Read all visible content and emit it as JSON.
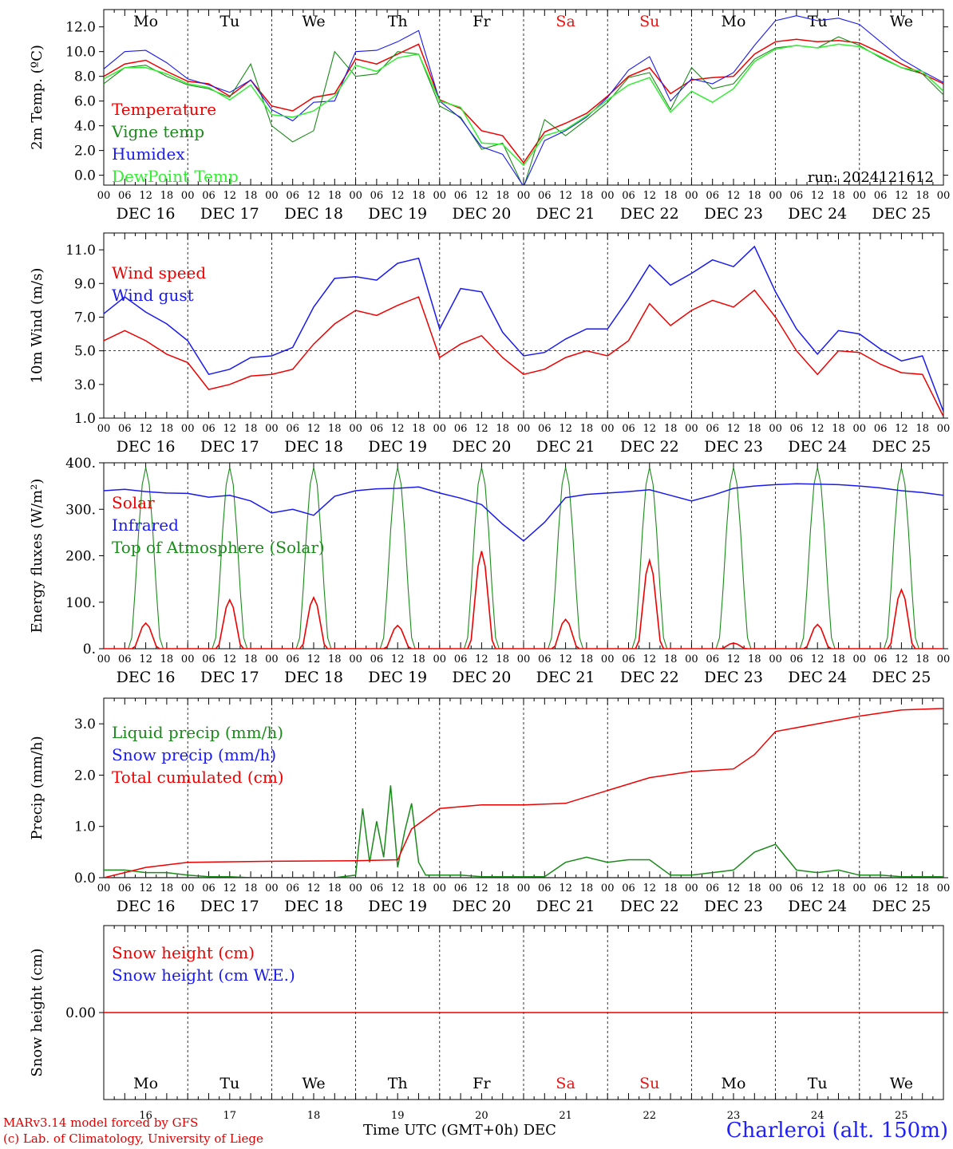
{
  "colors": {
    "red": "#ee0000",
    "dark_green": "#1a8a1a",
    "blue": "#1a1aee",
    "light_green": "#33ee33",
    "weekend": "#ee1111",
    "axis": "#000000"
  },
  "days": {
    "weekday_labels": [
      "Mo",
      "Tu",
      "We",
      "Th",
      "Fr",
      "Sa",
      "Su",
      "Mo",
      "Tu",
      "We"
    ],
    "weekend_flags": [
      false,
      false,
      false,
      false,
      false,
      true,
      true,
      false,
      false,
      false
    ],
    "date_labels": [
      "DEC 16",
      "DEC 17",
      "DEC 18",
      "DEC 19",
      "DEC 20",
      "DEC 21",
      "DEC 22",
      "DEC 23",
      "DEC 24",
      "DEC 25"
    ],
    "day_numbers": [
      "16",
      "17",
      "18",
      "19",
      "20",
      "21",
      "22",
      "23",
      "24",
      "25"
    ],
    "hour_ticks": [
      "00",
      "06",
      "12",
      "18"
    ],
    "final_tick": "00"
  },
  "footer": {
    "credit_line1": "MARv3.14 model forced by GFS",
    "credit_line2": "(c) Lab. of Climatology, University of Liege",
    "axis_title": "Time UTC (GMT+0h) DEC",
    "station": "Charleroi (alt. 150m)"
  },
  "chart_data": [
    {
      "type": "line",
      "panel": "temperature",
      "ylabel": "2m Temp. (ºC)",
      "ylim": [
        -0.8,
        13.4
      ],
      "yticks": [
        0.0,
        2.0,
        4.0,
        6.0,
        8.0,
        10.0,
        12.0
      ],
      "ytick_labels": [
        "0.0",
        "2.0",
        "4.0",
        "6.0",
        "8.0",
        "10.0",
        "12.0"
      ],
      "run_label": "run: 2024121612",
      "x_unit": "hours since Dec 16 00 UTC",
      "series": [
        {
          "name": "Temperature",
          "color": "#ee0000",
          "x": [
            0,
            6,
            12,
            18,
            24,
            30,
            36,
            42,
            48,
            54,
            60,
            66,
            72,
            78,
            84,
            90,
            96,
            102,
            108,
            114,
            120,
            126,
            132,
            138,
            144,
            150,
            156,
            162,
            168,
            174,
            180,
            186,
            192,
            198,
            204,
            210,
            216,
            222,
            228,
            234,
            240
          ],
          "y": [
            8.0,
            9.0,
            9.3,
            8.4,
            7.6,
            7.4,
            6.4,
            7.7,
            5.6,
            5.2,
            6.3,
            6.6,
            9.4,
            9.0,
            9.8,
            10.6,
            6.1,
            5.4,
            3.6,
            3.2,
            1.0,
            3.5,
            4.2,
            5.0,
            6.4,
            8.0,
            8.7,
            6.6,
            7.7,
            7.9,
            8.0,
            9.8,
            10.8,
            11.0,
            10.8,
            10.9,
            10.7,
            9.9,
            9.0,
            8.2,
            7.4
          ]
        },
        {
          "name": "Vigne temp",
          "color": "#1a8a1a",
          "x": [
            0,
            6,
            12,
            18,
            24,
            30,
            36,
            42,
            48,
            54,
            60,
            66,
            72,
            78,
            84,
            90,
            96,
            102,
            108,
            114,
            120,
            126,
            132,
            138,
            144,
            150,
            156,
            162,
            168,
            174,
            180,
            186,
            192,
            198,
            204,
            210,
            216,
            222,
            228,
            234,
            240
          ],
          "y": [
            7.4,
            8.7,
            8.9,
            8.0,
            7.3,
            7.0,
            6.3,
            9.0,
            4.0,
            2.7,
            3.6,
            10.0,
            8.0,
            8.2,
            10.0,
            9.8,
            5.6,
            4.7,
            2.1,
            2.6,
            -1.0,
            4.5,
            3.2,
            4.5,
            5.9,
            7.9,
            8.3,
            5.3,
            8.7,
            7.0,
            7.4,
            9.4,
            10.3,
            10.5,
            10.3,
            11.2,
            10.5,
            9.5,
            8.7,
            8.2,
            6.5
          ]
        },
        {
          "name": "Humidex",
          "color": "#1a1aee",
          "x": [
            0,
            6,
            12,
            18,
            24,
            30,
            36,
            42,
            48,
            54,
            60,
            66,
            72,
            78,
            84,
            90,
            96,
            102,
            108,
            114,
            120,
            126,
            132,
            138,
            144,
            150,
            156,
            162,
            168,
            174,
            180,
            186,
            192,
            198,
            204,
            210,
            216,
            222,
            228,
            234,
            240
          ],
          "y": [
            8.6,
            10.0,
            10.1,
            9.1,
            7.8,
            7.3,
            6.7,
            7.7,
            5.3,
            4.4,
            5.9,
            6.0,
            10.0,
            10.1,
            10.8,
            11.7,
            6.0,
            4.6,
            2.3,
            1.7,
            -0.9,
            2.8,
            3.6,
            4.7,
            6.3,
            8.5,
            9.6,
            6.0,
            7.8,
            7.4,
            8.3,
            10.5,
            12.5,
            12.9,
            12.5,
            12.7,
            12.2,
            10.8,
            9.4,
            8.4,
            7.5
          ]
        },
        {
          "name": "DewPoint Temp",
          "color": "#33ee33",
          "x": [
            0,
            6,
            12,
            18,
            24,
            30,
            36,
            42,
            48,
            54,
            60,
            66,
            72,
            78,
            84,
            90,
            96,
            102,
            108,
            114,
            120,
            126,
            132,
            138,
            144,
            150,
            156,
            162,
            168,
            174,
            180,
            186,
            192,
            198,
            204,
            210,
            216,
            222,
            228,
            234,
            240
          ],
          "y": [
            7.8,
            8.7,
            8.7,
            8.2,
            7.4,
            7.1,
            6.1,
            7.3,
            4.9,
            4.7,
            5.2,
            6.4,
            8.9,
            8.4,
            9.5,
            9.8,
            6.0,
            5.5,
            2.6,
            2.5,
            0.8,
            3.2,
            3.7,
            4.8,
            6.1,
            7.3,
            7.9,
            5.1,
            6.8,
            5.9,
            7.0,
            9.2,
            10.2,
            10.5,
            10.3,
            10.6,
            10.4,
            9.6,
            8.7,
            8.4,
            6.8
          ]
        }
      ]
    },
    {
      "type": "line",
      "panel": "wind",
      "ylabel": "10m Wind (m/s)",
      "ylim": [
        1.0,
        12.0
      ],
      "yticks": [
        1.0,
        3.0,
        5.0,
        7.0,
        9.0,
        11.0
      ],
      "ytick_labels": [
        "1.0",
        "3.0",
        "5.0",
        "7.0",
        "9.0",
        "11.0"
      ],
      "reference_line": 5.0,
      "x_unit": "hours since Dec 16 00 UTC",
      "series": [
        {
          "name": "Wind speed",
          "color": "#ee0000",
          "x": [
            0,
            6,
            12,
            18,
            24,
            30,
            36,
            42,
            48,
            54,
            60,
            66,
            72,
            78,
            84,
            90,
            96,
            102,
            108,
            114,
            120,
            126,
            132,
            138,
            144,
            150,
            156,
            162,
            168,
            174,
            180,
            186,
            192,
            198,
            204,
            210,
            216,
            222,
            228,
            234,
            240
          ],
          "y": [
            5.6,
            6.2,
            5.6,
            4.8,
            4.3,
            2.7,
            3.0,
            3.5,
            3.6,
            3.9,
            5.4,
            6.6,
            7.4,
            7.1,
            7.7,
            8.2,
            4.6,
            5.4,
            5.9,
            4.6,
            3.6,
            3.9,
            4.6,
            5.0,
            4.7,
            5.6,
            7.8,
            6.5,
            7.4,
            8.0,
            7.6,
            8.6,
            7.0,
            5.0,
            3.6,
            5.0,
            4.9,
            4.2,
            3.7,
            3.6,
            1.1
          ]
        },
        {
          "name": "Wind gust",
          "color": "#1a1aee",
          "x": [
            0,
            6,
            12,
            18,
            24,
            30,
            36,
            42,
            48,
            54,
            60,
            66,
            72,
            78,
            84,
            90,
            96,
            102,
            108,
            114,
            120,
            126,
            132,
            138,
            144,
            150,
            156,
            162,
            168,
            174,
            180,
            186,
            192,
            198,
            204,
            210,
            216,
            222,
            228,
            234,
            240
          ],
          "y": [
            7.2,
            8.2,
            7.3,
            6.6,
            5.6,
            3.6,
            3.9,
            4.6,
            4.7,
            5.2,
            7.6,
            9.3,
            9.4,
            9.2,
            10.2,
            10.5,
            6.3,
            8.7,
            8.5,
            6.1,
            4.7,
            4.9,
            5.7,
            6.3,
            6.3,
            8.1,
            10.1,
            8.9,
            9.6,
            10.4,
            10.0,
            11.2,
            8.5,
            6.3,
            4.8,
            6.2,
            6.0,
            5.1,
            4.4,
            4.7,
            1.4
          ]
        }
      ]
    },
    {
      "type": "line",
      "panel": "energy",
      "ylabel": "Energy fluxes (W/m²)",
      "ylim": [
        0,
        400
      ],
      "yticks": [
        0,
        100,
        200,
        300,
        400
      ],
      "ytick_labels": [
        "0.",
        "100.",
        "200.",
        "300.",
        "400."
      ],
      "x_unit": "hours since Dec 16 00 UTC",
      "daily_peaks": {
        "Solar": [
          55,
          105,
          110,
          50,
          210,
          63,
          190,
          12,
          52,
          127
        ],
        "Top of Atmosphere (Solar)": [
          390,
          390,
          390,
          390,
          390,
          390,
          390,
          390,
          390,
          390
        ]
      },
      "series": [
        {
          "name": "Solar",
          "color": "#ee0000"
        },
        {
          "name": "Infrared",
          "color": "#1a1aee",
          "x": [
            0,
            6,
            12,
            18,
            24,
            30,
            36,
            42,
            48,
            54,
            60,
            66,
            72,
            78,
            84,
            90,
            96,
            102,
            108,
            114,
            120,
            126,
            132,
            138,
            144,
            150,
            156,
            162,
            168,
            174,
            180,
            186,
            192,
            198,
            204,
            210,
            216,
            222,
            228,
            234,
            240
          ],
          "y": [
            340,
            343,
            338,
            335,
            334,
            326,
            330,
            318,
            292,
            300,
            287,
            328,
            340,
            344,
            345,
            348,
            335,
            324,
            310,
            268,
            232,
            272,
            325,
            332,
            335,
            338,
            342,
            330,
            318,
            330,
            345,
            350,
            353,
            355,
            354,
            353,
            350,
            346,
            340,
            336,
            330
          ]
        },
        {
          "name": "Top of Atmosphere (Solar)",
          "color": "#1a8a1a"
        }
      ]
    },
    {
      "type": "line",
      "panel": "precip",
      "ylabel": "Precip (mm/h)",
      "ylim": [
        0.0,
        3.5
      ],
      "yticks": [
        0.0,
        1.0,
        2.0,
        3.0
      ],
      "ytick_labels": [
        "0.0",
        "1.0",
        "2.0",
        "3.0"
      ],
      "x_unit": "hours since Dec 16 00 UTC",
      "series": [
        {
          "name": "Liquid precip (mm/h)",
          "color": "#1a8a1a",
          "x": [
            0,
            6,
            12,
            18,
            24,
            30,
            36,
            42,
            48,
            54,
            60,
            66,
            72,
            74,
            76,
            78,
            80,
            82,
            84,
            86,
            88,
            90,
            92,
            96,
            102,
            108,
            114,
            120,
            126,
            132,
            138,
            144,
            150,
            156,
            162,
            168,
            174,
            180,
            186,
            192,
            198,
            204,
            210,
            216,
            222,
            228,
            234,
            240
          ],
          "y": [
            0.15,
            0.15,
            0.1,
            0.1,
            0.05,
            0.02,
            0.02,
            0.0,
            0.0,
            0.0,
            0.0,
            0.0,
            0.05,
            1.35,
            0.3,
            1.1,
            0.4,
            1.8,
            0.2,
            0.9,
            1.45,
            0.3,
            0.05,
            0.05,
            0.05,
            0.02,
            0.02,
            0.02,
            0.02,
            0.3,
            0.4,
            0.3,
            0.35,
            0.35,
            0.05,
            0.05,
            0.1,
            0.15,
            0.5,
            0.65,
            0.15,
            0.1,
            0.15,
            0.05,
            0.05,
            0.02,
            0.02,
            0.02
          ]
        },
        {
          "name": "Snow precip (mm/h)",
          "color": "#1a1aee",
          "x": [
            0,
            240
          ],
          "y": [
            0.0,
            0.0
          ]
        },
        {
          "name": "Total cumulated (cm)",
          "color": "#ee0000",
          "x": [
            0,
            12,
            24,
            48,
            72,
            84,
            88,
            96,
            108,
            120,
            132,
            144,
            156,
            168,
            180,
            186,
            192,
            204,
            216,
            228,
            240
          ],
          "y": [
            0.0,
            0.2,
            0.3,
            0.32,
            0.33,
            0.35,
            0.95,
            1.35,
            1.42,
            1.42,
            1.45,
            1.7,
            1.95,
            2.07,
            2.12,
            2.4,
            2.85,
            3.0,
            3.15,
            3.27,
            3.3
          ]
        }
      ]
    },
    {
      "type": "line",
      "panel": "snow",
      "ylabel": "Snow height (cm)",
      "ylim": [
        -1,
        1
      ],
      "yticks": [
        0.0
      ],
      "ytick_labels": [
        "0.00"
      ],
      "x_unit": "hours since Dec 16 00 UTC",
      "series": [
        {
          "name": "Snow height (cm)",
          "color": "#ee0000",
          "x": [
            0,
            240
          ],
          "y": [
            0.0,
            0.0
          ]
        },
        {
          "name": "Snow height (cm W.E.)",
          "color": "#1a1aee"
        }
      ]
    }
  ]
}
